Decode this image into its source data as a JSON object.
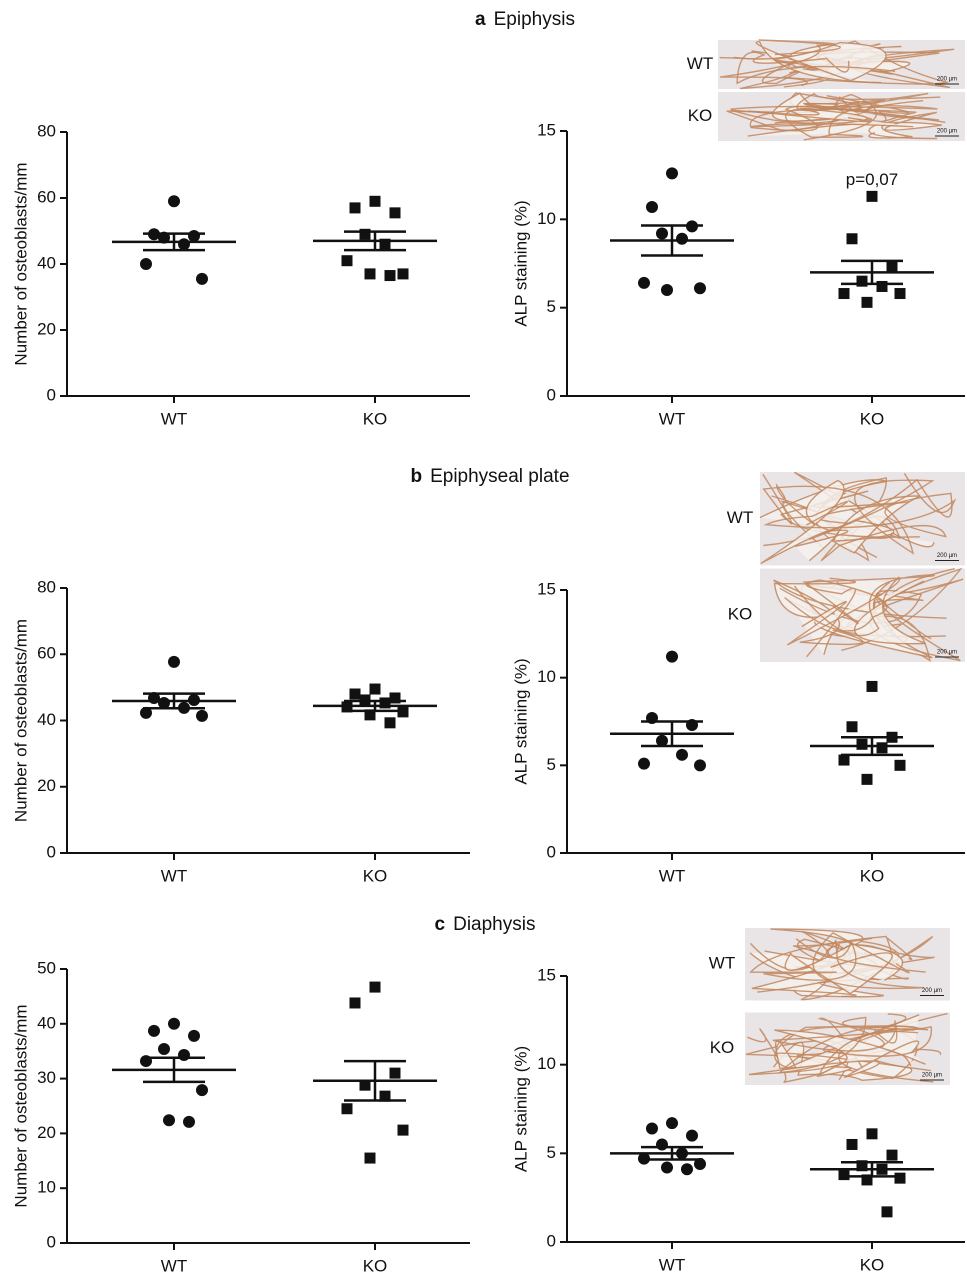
{
  "sections": [
    {
      "letter": "a",
      "title": "Epiphysis"
    },
    {
      "letter": "b",
      "title": "Epiphyseal plate"
    },
    {
      "letter": "c",
      "title": "Diaphysis"
    }
  ],
  "chart_data": [
    {
      "type": "scatter",
      "ylabel": "Number of osteoblasts/mm",
      "categories": [
        "WT",
        "KO"
      ],
      "color": "#111111",
      "ylim": [
        0,
        80
      ],
      "yticks": [
        0,
        20,
        40,
        60,
        80
      ],
      "series": [
        {
          "marker": "circle",
          "values": [
            59,
            49,
            48.5,
            48,
            46,
            40,
            35.5
          ],
          "mean": 46.7,
          "sem": 2.5
        },
        {
          "marker": "square",
          "values": [
            59,
            57,
            55.5,
            49,
            46,
            41,
            37,
            37,
            36.5
          ],
          "mean": 47,
          "sem": 2.8
        }
      ]
    },
    {
      "type": "scatter",
      "ylabel": "ALP staining (%)",
      "categories": [
        "WT",
        "KO"
      ],
      "color": "#111111",
      "ylim": [
        0,
        15
      ],
      "yticks": [
        0,
        5,
        10,
        15
      ],
      "annotation": "p=0,07",
      "inset": {
        "labels": [
          "WT",
          "KO"
        ],
        "scale": "200 µm"
      },
      "series": [
        {
          "marker": "circle",
          "values": [
            12.6,
            10.7,
            9.6,
            9.2,
            8.9,
            6.4,
            6.1,
            6.0
          ],
          "mean": 8.8,
          "sem": 0.85
        },
        {
          "marker": "square",
          "values": [
            11.3,
            8.9,
            7.3,
            6.5,
            6.2,
            5.8,
            5.8,
            5.3
          ],
          "mean": 7.0,
          "sem": 0.65
        }
      ]
    },
    {
      "type": "scatter",
      "ylabel": "Number of osteoblasts/mm",
      "categories": [
        "WT",
        "KO"
      ],
      "color": "#111111",
      "ylim": [
        0,
        80
      ],
      "yticks": [
        0,
        20,
        40,
        60,
        80
      ],
      "series": [
        {
          "marker": "circle",
          "values": [
            57.7,
            46.8,
            46.2,
            45.3,
            43.8,
            42.3,
            41.4
          ],
          "mean": 45.9,
          "sem": 2.2
        },
        {
          "marker": "square",
          "values": [
            49.5,
            48,
            46.8,
            46.2,
            45.3,
            44.1,
            42.6,
            41.7,
            39.3
          ],
          "mean": 44.4,
          "sem": 1.5
        }
      ]
    },
    {
      "type": "scatter",
      "ylabel": "ALP staining (%)",
      "categories": [
        "WT",
        "KO"
      ],
      "color": "#111111",
      "ylim": [
        0,
        15
      ],
      "yticks": [
        0,
        5,
        10,
        15
      ],
      "inset": {
        "labels": [
          "WT",
          "KO"
        ],
        "scale": "200 µm"
      },
      "series": [
        {
          "marker": "circle",
          "values": [
            11.2,
            7.7,
            7.3,
            6.4,
            5.6,
            5.1,
            5.0
          ],
          "mean": 6.8,
          "sem": 0.7
        },
        {
          "marker": "square",
          "values": [
            9.5,
            7.2,
            6.6,
            6.2,
            6.0,
            5.3,
            5.0,
            4.2
          ],
          "mean": 6.1,
          "sem": 0.5
        }
      ]
    },
    {
      "type": "scatter",
      "ylabel": "Number of osteoblasts/mm",
      "categories": [
        "WT",
        "KO"
      ],
      "color": "#111111",
      "ylim": [
        0,
        50
      ],
      "yticks": [
        0,
        10,
        20,
        30,
        40,
        50
      ],
      "series": [
        {
          "marker": "circle",
          "values": [
            40,
            38.7,
            37.8,
            35.4,
            34.3,
            33.2,
            27.9,
            22.4,
            22.1
          ],
          "mean": 31.6,
          "sem": 2.2
        },
        {
          "marker": "square",
          "values": [
            46.7,
            43.8,
            31,
            28.8,
            26.8,
            24.5,
            20.6,
            15.5
          ],
          "mean": 29.6,
          "sem": 3.6
        }
      ]
    },
    {
      "type": "scatter",
      "ylabel": "ALP staining (%)",
      "categories": [
        "WT",
        "KO"
      ],
      "color": "#111111",
      "ylim": [
        0,
        15
      ],
      "yticks": [
        0,
        5,
        10,
        15
      ],
      "inset": {
        "labels": [
          "WT",
          "KO"
        ],
        "scale": "200 µm"
      },
      "series": [
        {
          "marker": "circle",
          "values": [
            6.7,
            6.4,
            6.0,
            5.5,
            5.0,
            4.7,
            4.4,
            4.2,
            4.1
          ],
          "mean": 5.0,
          "sem": 0.35
        },
        {
          "marker": "square",
          "values": [
            6.1,
            5.5,
            4.9,
            4.3,
            4.1,
            3.8,
            3.6,
            3.5,
            1.7
          ],
          "mean": 4.1,
          "sem": 0.4
        }
      ]
    }
  ]
}
